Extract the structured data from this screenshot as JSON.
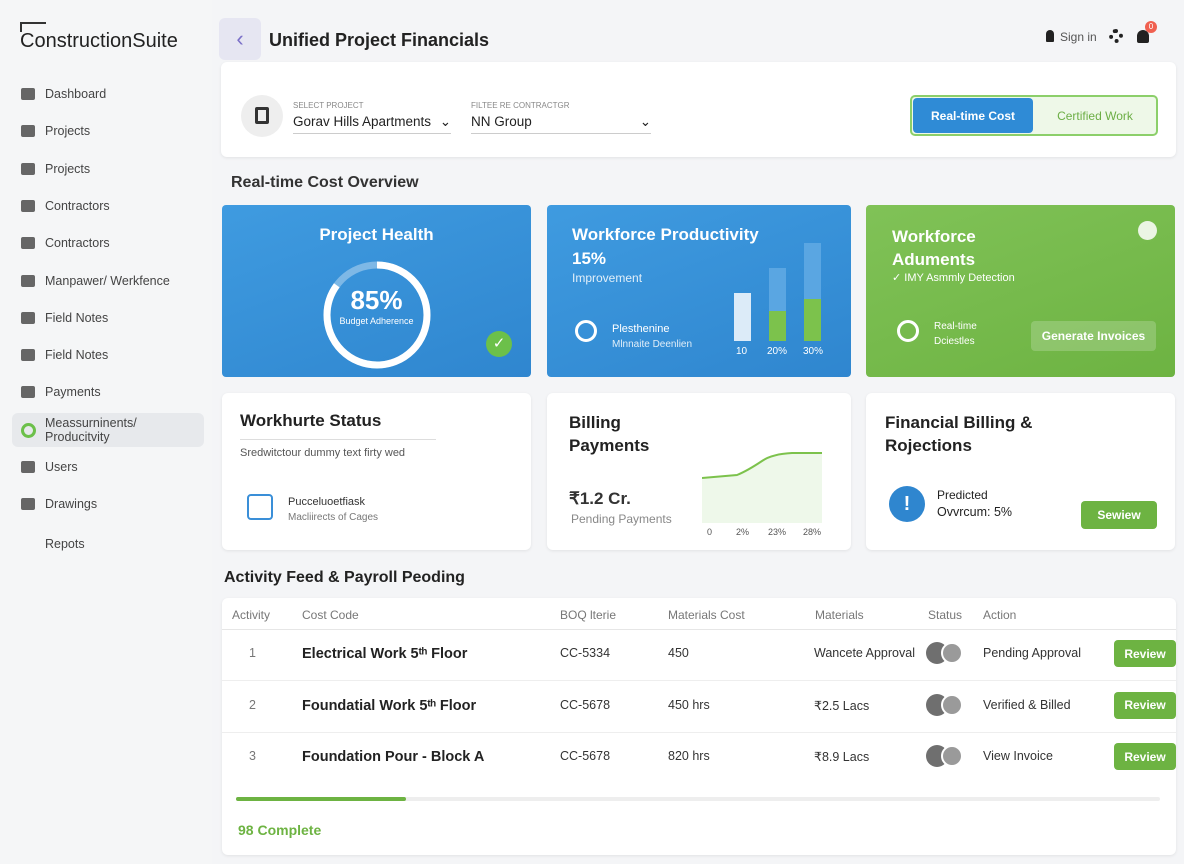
{
  "sidebar": {
    "brand": "ConstructionSuite",
    "items": [
      "Dashboard",
      "Projects",
      "Projects",
      "Contractors",
      "Contractors",
      "Manpawer/ Werkfence",
      "Field Notes",
      "Field Notes",
      "Payments",
      "Meassurninents/ Producitvity",
      "Users",
      "Drawings",
      "Repots"
    ]
  },
  "header": {
    "title": "Unified Project Financials",
    "sign_in": "Sign in",
    "notifications": "0"
  },
  "filters": {
    "project_label": "SELECT PROJECT",
    "project": "Gorav Hills Apartments",
    "contractor_label": "FILTEE RE CONTRACTGR",
    "contractor": "NN Group",
    "toggle": [
      "Real-time Cost",
      "Certified Work"
    ]
  },
  "overview": {
    "title": "Real-time Cost Overview",
    "health": {
      "title": "Project Health",
      "value": 85,
      "label": "85%",
      "caption": "Budget Adherence"
    },
    "productivity": {
      "title": "Workforce Productivity",
      "value": "15%",
      "caption": "Improvement",
      "legend_title": "Plesthenine",
      "legend_sub": "Mlnnaite Deenlien",
      "axis": [
        "10",
        "20%",
        "30%"
      ]
    },
    "adjustments": {
      "title": "Workforce Aduments",
      "subtitle": "✓ IMY Asmmly Detection",
      "legend_title": "Real-time",
      "legend_sub": "Dciestles",
      "button": "Generate Invoices"
    }
  },
  "status_cards": {
    "workforce": {
      "title": "Workhurte Status",
      "text": "Sredwitctour dummy text firty wed",
      "item_title": "Pucceluoetfiask",
      "item_sub": "Macliirects of Cages"
    },
    "billing": {
      "title": "Billing Payments",
      "amount": "₹1.2 Cr.",
      "caption": "Pending Payments",
      "axis": [
        "0",
        "2%",
        "23%",
        "28%"
      ]
    },
    "projections": {
      "title": "Financial Billing & Rojections",
      "label": "Predicted",
      "value": "Ovvrcum: 5%",
      "button": "Sewiew"
    }
  },
  "activity": {
    "title": "Activity Feed & Payroll Peoding",
    "columns": [
      "Activity",
      "Cost Code",
      "BOQ lterie",
      "Materials Cost",
      "Materials",
      "Status",
      "Action"
    ],
    "rows": [
      [
        "1",
        "Electrical Work 5ᵗʰ Floor",
        "CC-5334",
        "450",
        "Wancete Approval",
        "Pending Approval",
        "Review"
      ],
      [
        "2",
        "Foundatial Work 5ᵗʰ Floor",
        "CC-5678",
        "450 hrs",
        "₹2.5 Lacs",
        "Verified & Billed",
        "Review"
      ],
      [
        "3",
        "Foundation Pour - Block A",
        "CC-5678",
        "820 hrs",
        "₹8.9 Lacs",
        "View Invoice",
        "Review"
      ]
    ],
    "footer": "98 Complete"
  }
}
